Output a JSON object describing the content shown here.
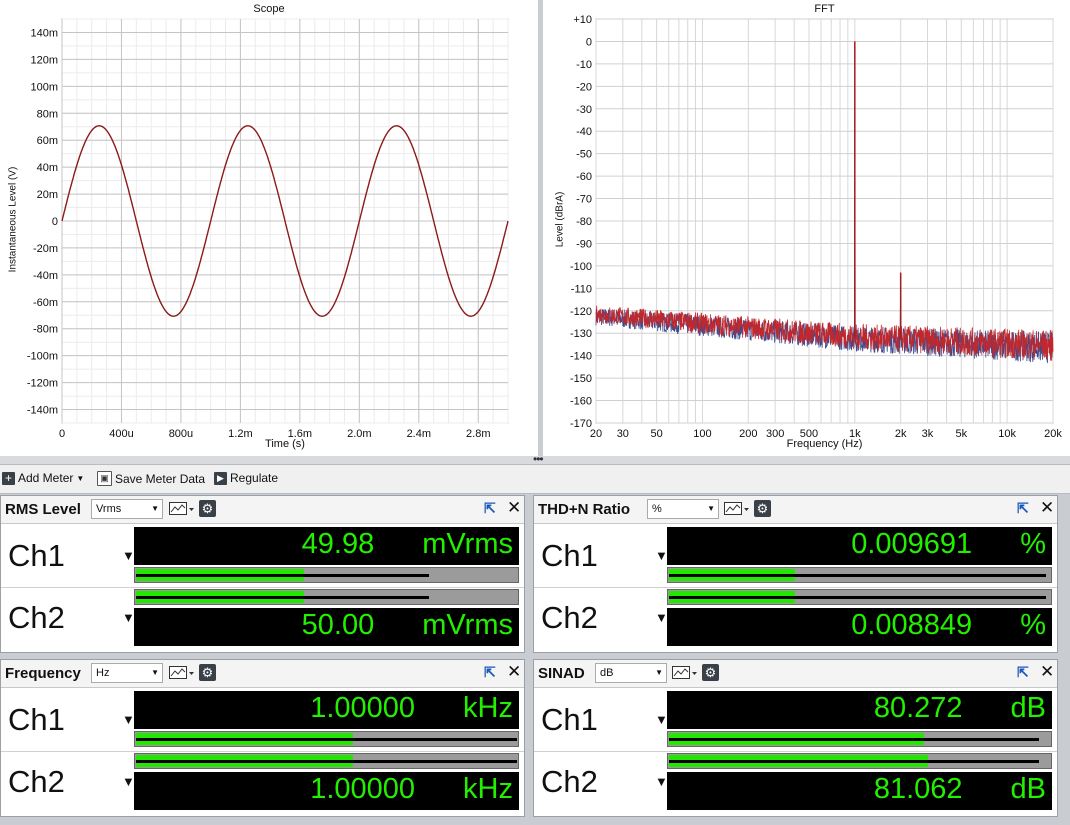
{
  "scope": {
    "title": "Scope",
    "xlabel": "Time (s)",
    "ylabel": "Instantaneous Level (V)",
    "x_ticks": [
      "0",
      "400u",
      "800u",
      "1.2m",
      "1.6m",
      "2.0m",
      "2.4m",
      "2.8m"
    ],
    "y_ticks": [
      "140m",
      "120m",
      "100m",
      "80m",
      "60m",
      "40m",
      "20m",
      "0",
      "-20m",
      "-40m",
      "-60m",
      "-80m",
      "-100m",
      "-120m",
      "-140m"
    ]
  },
  "fft": {
    "title": "FFT",
    "xlabel": "Frequency (Hz)",
    "ylabel": "Level (dBrA)",
    "x_ticks": [
      "20",
      "30",
      "50",
      "100",
      "200",
      "300",
      "500",
      "1k",
      "2k",
      "3k",
      "5k",
      "10k",
      "20k"
    ],
    "y_ticks": [
      "+10",
      "0",
      "-10",
      "-20",
      "-30",
      "-40",
      "-50",
      "-60",
      "-70",
      "-80",
      "-90",
      "-100",
      "-110",
      "-120",
      "-130",
      "-140",
      "-150",
      "-160",
      "-170"
    ]
  },
  "chart_data": [
    {
      "type": "line",
      "title": "Scope",
      "xlabel": "Time (s)",
      "ylabel": "Instantaneous Level (V)",
      "xlim": [
        0,
        0.003
      ],
      "ylim": [
        -0.15,
        0.15
      ],
      "grid": true,
      "series": [
        {
          "color": "#8b1a1a",
          "function": "sine",
          "amplitude_V": 0.0707,
          "frequency_Hz": 1000
        }
      ]
    },
    {
      "type": "line",
      "title": "FFT",
      "xlabel": "Frequency (Hz)",
      "ylabel": "Level (dBrA)",
      "x_scale": "log",
      "xlim": [
        20,
        20000
      ],
      "ylim": [
        -170,
        10
      ],
      "grid": true,
      "noise_floor": [
        {
          "x": 20,
          "y": -122
        },
        {
          "x": 1000,
          "y": -132
        },
        {
          "x": 20000,
          "y": -136
        }
      ],
      "peaks": [
        {
          "x": 1000,
          "y": 0
        },
        {
          "x": 2000,
          "y": -103
        }
      ],
      "series": [
        {
          "color": "#3b4a8f"
        },
        {
          "color": "#c0282d"
        }
      ]
    }
  ],
  "toolbar": {
    "add_meter": "Add Meter",
    "save_meter_data": "Save Meter Data",
    "regulate": "Regulate"
  },
  "meters": {
    "rms": {
      "title": "RMS Level",
      "unit_select": "Vrms",
      "ch1": {
        "label": "Ch1",
        "value": "49.98",
        "unit": "mVrms",
        "bar_fraction": 0.44,
        "peak_fraction": 0.77
      },
      "ch2": {
        "label": "Ch2",
        "value": "50.00",
        "unit": "mVrms",
        "bar_fraction": 0.44,
        "peak_fraction": 0.77
      }
    },
    "thdn": {
      "title": "THD+N Ratio",
      "unit_select": "%",
      "ch1": {
        "label": "Ch1",
        "value": "0.009691",
        "unit": "%",
        "bar_fraction": 0.33,
        "peak_fraction": 0.99
      },
      "ch2": {
        "label": "Ch2",
        "value": "0.008849",
        "unit": "%",
        "bar_fraction": 0.33,
        "peak_fraction": 0.99
      }
    },
    "freq": {
      "title": "Frequency",
      "unit_select": "Hz",
      "ch1": {
        "label": "Ch1",
        "value": "1.00000",
        "unit": "kHz",
        "bar_fraction": 0.57,
        "peak_fraction": 1.0
      },
      "ch2": {
        "label": "Ch2",
        "value": "1.00000",
        "unit": "kHz",
        "bar_fraction": 0.57,
        "peak_fraction": 1.0
      }
    },
    "sinad": {
      "title": "SINAD",
      "unit_select": "dB",
      "ch1": {
        "label": "Ch1",
        "value": "80.272",
        "unit": "dB",
        "bar_fraction": 0.67,
        "peak_fraction": 0.97
      },
      "ch2": {
        "label": "Ch2",
        "value": "81.062",
        "unit": "dB",
        "bar_fraction": 0.68,
        "peak_fraction": 0.97
      }
    }
  }
}
